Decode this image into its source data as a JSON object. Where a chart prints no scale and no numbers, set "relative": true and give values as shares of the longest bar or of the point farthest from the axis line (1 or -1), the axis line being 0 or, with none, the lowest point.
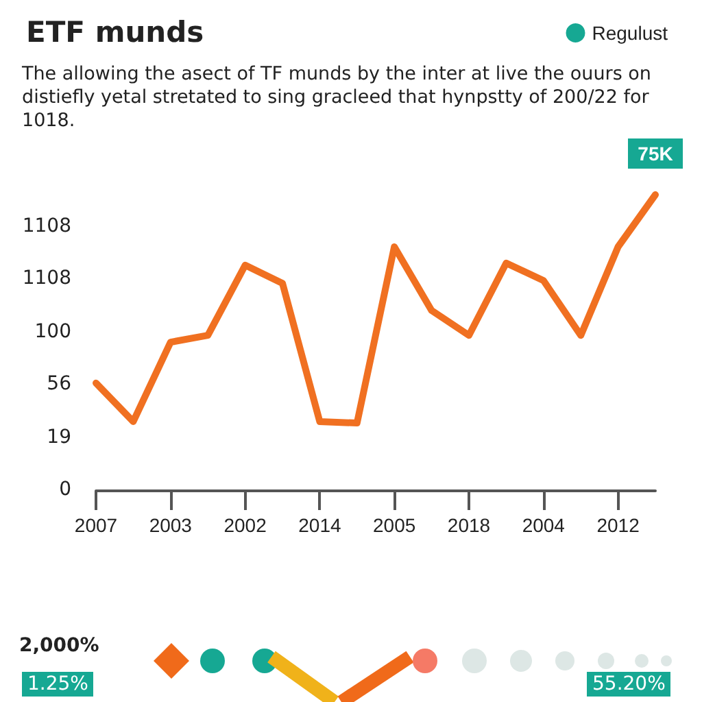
{
  "chart_data": {
    "type": "line",
    "title": "ETF munds",
    "subtitle": "The allowing the asect of TF munds by the inter at live the ouurs on distiefly yetal stretated to sing gracleed that hynpstty of 200/22 for 1018.",
    "categories": [
      "2007",
      null,
      "2003",
      null,
      "2002",
      null,
      "2014",
      null,
      "2005",
      null,
      "2018",
      null,
      "2004",
      null,
      "2012",
      null
    ],
    "series": [
      {
        "color": "#f07021",
        "values": [
          0.364,
          0.234,
          0.502,
          0.525,
          0.762,
          0.701,
          0.234,
          0.229,
          0.824,
          0.609,
          0.525,
          0.769,
          0.71,
          0.525,
          0.824,
          1
        ]
      },
      {
        "name": "Regulust",
        "color": "#16a893",
        "values": [
          null,
          null,
          null,
          null,
          null,
          null,
          null,
          null,
          null,
          null,
          null,
          null,
          null,
          null,
          null,
          null
        ]
      }
    ],
    "relative": true,
    "legend": "top right",
    "marker": "none",
    "line_style": "solid",
    "annotations": [
      {
        "text": "75K",
        "y": 1
      },
      "0",
      "19",
      "56",
      "100",
      "1108",
      "1108",
      "2,000%",
      "1.25%",
      "55.20%"
    ]
  }
}
